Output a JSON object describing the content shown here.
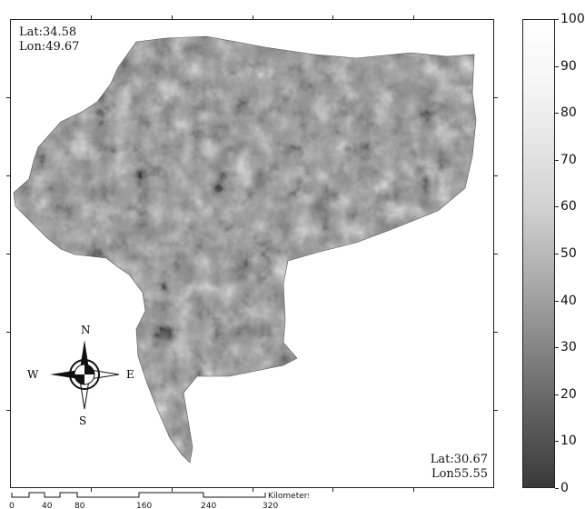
{
  "map": {
    "top_left": {
      "lat": "Lat:34.58",
      "lon": "Lon:49.67"
    },
    "bottom_right": {
      "lat": "Lat:30.67",
      "lon": "Lon55.55"
    },
    "compass": {
      "north": "N",
      "south": "S",
      "east": "E",
      "west": "W"
    }
  },
  "colorbar": {
    "ticks": [
      "100",
      "90",
      "80",
      "70",
      "60",
      "50",
      "40",
      "30",
      "20",
      "10",
      "0"
    ]
  },
  "scale_bar": {
    "unit": "Kilometers",
    "ticks": [
      "0",
      "40",
      "80",
      "160",
      "240",
      "320"
    ]
  }
}
